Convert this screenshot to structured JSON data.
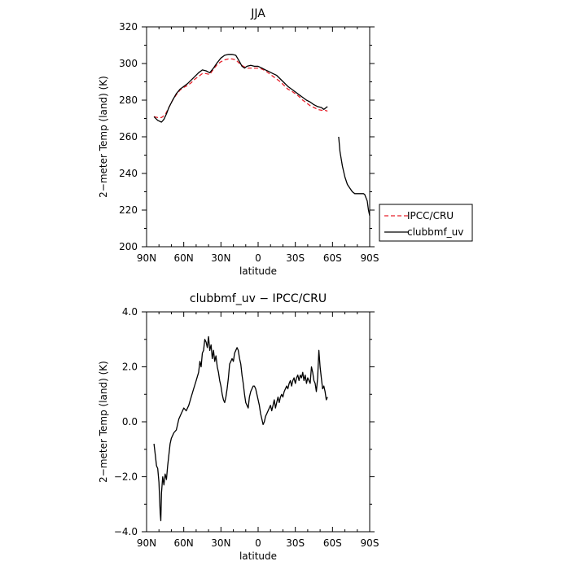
{
  "chart_data": [
    {
      "type": "line",
      "title": "JJA",
      "xlabel": "latitude",
      "ylabel": "2−meter Temp (land) (K)",
      "xlim": [
        90,
        -90
      ],
      "ylim": [
        200,
        320
      ],
      "x_ticks": [
        "90N",
        "60N",
        "30N",
        "0",
        "30S",
        "60S",
        "90S"
      ],
      "x_tick_values": [
        90,
        60,
        30,
        0,
        -30,
        -60,
        -90
      ],
      "y_ticks": [
        "200",
        "220",
        "240",
        "260",
        "280",
        "300",
        "320"
      ],
      "y_tick_values": [
        200,
        220,
        240,
        260,
        280,
        300,
        320
      ],
      "legend": {
        "placement": "right",
        "entries": [
          "IPCC/CRU",
          "clubbmf_uv"
        ]
      },
      "series": [
        {
          "name": "IPCC/CRU",
          "color": "#e8212b",
          "style": "dashed",
          "segments": [
            {
              "x": [
                84,
                81,
                78,
                75,
                72,
                69,
                66,
                63,
                60,
                57,
                54,
                51,
                48,
                45,
                42,
                39,
                36,
                33,
                30,
                27,
                24,
                21,
                18,
                15,
                12,
                9,
                6,
                3,
                0,
                -3,
                -6,
                -9,
                -12,
                -15,
                -18,
                -21,
                -24,
                -27,
                -30,
                -33,
                -36,
                -39,
                -42,
                -45,
                -48,
                -51,
                -54,
                -56
              ],
              "y": [
                271,
                270.5,
                270.5,
                272,
                276,
                280,
                283,
                285.5,
                287,
                288,
                289.5,
                291.5,
                293,
                294.5,
                294.5,
                294,
                297,
                299.5,
                301,
                302,
                302.5,
                302.5,
                302,
                300,
                298.5,
                297.5,
                297.5,
                297.5,
                297.5,
                297,
                296,
                294.5,
                293,
                291.5,
                290,
                288,
                286,
                285,
                283.5,
                282,
                280,
                278.5,
                277,
                276,
                275,
                274.5,
                274.5,
                274
              ]
            }
          ]
        },
        {
          "name": "clubbmf_uv",
          "color": "#000000",
          "style": "solid",
          "segments": [
            {
              "x": [
                84,
                81,
                78,
                76,
                74,
                72,
                69,
                66,
                63,
                60,
                57,
                54,
                51,
                48,
                45,
                42,
                39,
                36,
                33,
                30,
                27,
                24,
                21,
                18,
                15,
                13,
                11,
                9,
                6,
                3,
                0,
                -3,
                -6,
                -9,
                -12,
                -15,
                -18,
                -21,
                -24,
                -27,
                -30,
                -33,
                -36,
                -39,
                -42,
                -45,
                -48,
                -51,
                -53,
                -55,
                -56
              ],
              "y": [
                271,
                269,
                268,
                269.5,
                272.5,
                276,
                280,
                283.5,
                286,
                287.5,
                289,
                291,
                293,
                295,
                296.5,
                296,
                295,
                297.5,
                300.5,
                303,
                304.5,
                305,
                305,
                304.5,
                301,
                298.5,
                297.5,
                298.5,
                299,
                298.5,
                298.5,
                297.5,
                296.5,
                295.5,
                294.5,
                293.5,
                291.5,
                289.5,
                287.5,
                286,
                284.5,
                283,
                281.5,
                280,
                279,
                277.5,
                276.5,
                276,
                275,
                276,
                276.5
              ]
            },
            {
              "x": [
                -65,
                -66,
                -67,
                -68,
                -70,
                -72,
                -74,
                -76,
                -78,
                -80,
                -82,
                -84,
                -85,
                -86,
                -88,
                -89,
                -90
              ],
              "y": [
                260,
                252,
                248,
                244,
                238,
                234,
                232,
                230,
                229,
                229,
                229,
                229,
                229,
                228.5,
                225,
                220,
                217
              ]
            }
          ]
        }
      ]
    },
    {
      "type": "line",
      "title": "clubbmf_uv − IPCC/CRU",
      "xlabel": "latitude",
      "ylabel": "2−meter Temp (land) (K)",
      "xlim": [
        90,
        -90
      ],
      "ylim": [
        -4.0,
        4.0
      ],
      "x_ticks": [
        "90N",
        "60N",
        "30N",
        "0",
        "30S",
        "60S",
        "90S"
      ],
      "x_tick_values": [
        90,
        60,
        30,
        0,
        -30,
        -60,
        -90
      ],
      "y_ticks": [
        "−4.0",
        "−2.0",
        "0.0",
        "2.0",
        "4.0"
      ],
      "y_tick_values": [
        -4,
        -2,
        0,
        2,
        4
      ],
      "series": [
        {
          "color": "#000000",
          "style": "solid",
          "segments": [
            {
              "x": [
                84,
                83,
                82,
                81,
                80,
                79,
                78.5,
                78,
                77,
                76,
                75,
                74,
                73,
                72,
                71,
                70,
                68,
                66,
                64,
                62,
                60,
                58,
                56,
                54,
                52,
                50,
                48,
                47,
                46,
                45,
                44,
                43,
                42,
                41,
                40,
                39,
                38,
                37,
                36,
                35,
                34,
                33,
                32,
                31,
                30,
                29,
                28,
                27,
                26,
                25,
                24,
                23,
                22,
                21,
                20,
                19,
                18,
                17,
                16,
                15,
                14,
                13,
                12,
                11,
                10,
                9,
                8,
                7,
                6,
                5,
                4,
                3,
                2,
                1,
                0,
                -1,
                -2,
                -3,
                -4,
                -5,
                -6,
                -7,
                -8,
                -9,
                -10,
                -11,
                -12,
                -13,
                -14,
                -15,
                -16,
                -17,
                -18,
                -19,
                -20,
                -21,
                -22,
                -23,
                -24,
                -25,
                -26,
                -27,
                -28,
                -29,
                -30,
                -31,
                -32,
                -33,
                -34,
                -35,
                -36,
                -37,
                -38,
                -39,
                -40,
                -41,
                -42,
                -43,
                -44,
                -45,
                -46,
                -47,
                -48,
                -49,
                -50,
                -51,
                -52,
                -53,
                -54,
                -55,
                -56
              ],
              "y": [
                -0.8,
                -1.2,
                -1.6,
                -1.7,
                -2.2,
                -3.3,
                -3.6,
                -2.6,
                -2.0,
                -2.3,
                -1.9,
                -2.1,
                -1.6,
                -1.2,
                -0.8,
                -0.6,
                -0.4,
                -0.3,
                0.1,
                0.3,
                0.5,
                0.4,
                0.6,
                0.9,
                1.2,
                1.5,
                1.8,
                2.2,
                2.0,
                2.5,
                2.6,
                3.0,
                2.9,
                2.7,
                3.1,
                2.6,
                2.8,
                2.3,
                2.6,
                2.2,
                2.4,
                2.0,
                1.8,
                1.5,
                1.3,
                1.0,
                0.8,
                0.7,
                0.9,
                1.2,
                1.6,
                2.1,
                2.2,
                2.3,
                2.2,
                2.5,
                2.6,
                2.7,
                2.6,
                2.3,
                2.1,
                1.7,
                1.4,
                1.0,
                0.7,
                0.6,
                0.5,
                0.9,
                1.1,
                1.2,
                1.3,
                1.3,
                1.2,
                1.0,
                0.8,
                0.6,
                0.3,
                0.1,
                -0.1,
                0.0,
                0.2,
                0.3,
                0.4,
                0.5,
                0.6,
                0.4,
                0.6,
                0.8,
                0.5,
                0.7,
                0.9,
                0.7,
                0.9,
                1.0,
                0.9,
                1.1,
                1.2,
                1.3,
                1.2,
                1.4,
                1.5,
                1.3,
                1.5,
                1.6,
                1.4,
                1.6,
                1.7,
                1.5,
                1.7,
                1.6,
                1.8,
                1.5,
                1.7,
                1.4,
                1.6,
                1.5,
                1.4,
                2.0,
                1.8,
                1.5,
                1.4,
                1.1,
                1.6,
                2.6,
                2.0,
                1.6,
                1.2,
                1.3,
                1.1,
                0.8,
                0.9
              ]
            }
          ]
        }
      ]
    }
  ]
}
